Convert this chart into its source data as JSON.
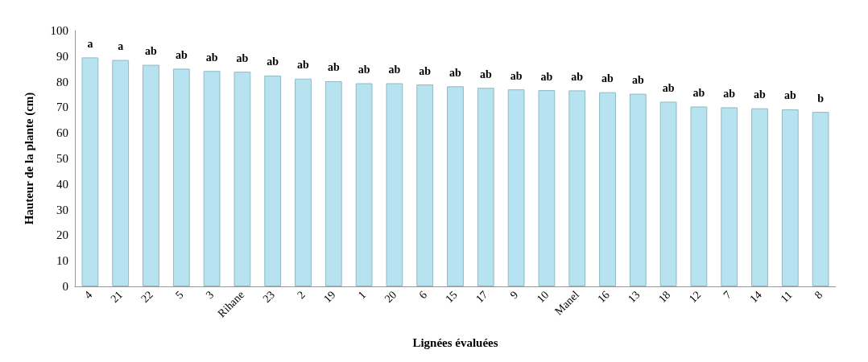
{
  "chart_data": {
    "type": "bar",
    "xlabel": "Lignées évaluées",
    "ylabel": "Hauteur de la plante (cm)",
    "categories": [
      "4",
      "21",
      "22",
      "5",
      "3",
      "Rihane",
      "23",
      "2",
      "19",
      "1",
      "20",
      "6",
      "15",
      "17",
      "9",
      "10",
      "Manel",
      "16",
      "13",
      "18",
      "12",
      "7",
      "14",
      "11",
      "8"
    ],
    "values": [
      89.5,
      88.5,
      86.6,
      85.1,
      84.2,
      83.9,
      82.4,
      81.2,
      80.2,
      79.4,
      79.4,
      78.9,
      78.2,
      77.6,
      77.0,
      76.7,
      76.6,
      75.9,
      75.3,
      72.2,
      70.3,
      70.0,
      69.6,
      69.2,
      68.2
    ],
    "value_labels": [
      "a",
      "a",
      "ab",
      "ab",
      "ab",
      "ab",
      "ab",
      "ab",
      "ab",
      "ab",
      "ab",
      "ab",
      "ab",
      "ab",
      "ab",
      "ab",
      "ab",
      "ab",
      "ab",
      "ab",
      "ab",
      "ab",
      "ab",
      "ab",
      "b"
    ],
    "color": "#b7e3f0",
    "ylim": [
      0,
      100
    ],
    "yticks": [
      0,
      10,
      20,
      30,
      40,
      50,
      60,
      70,
      80,
      90,
      100
    ],
    "grid": false
  }
}
